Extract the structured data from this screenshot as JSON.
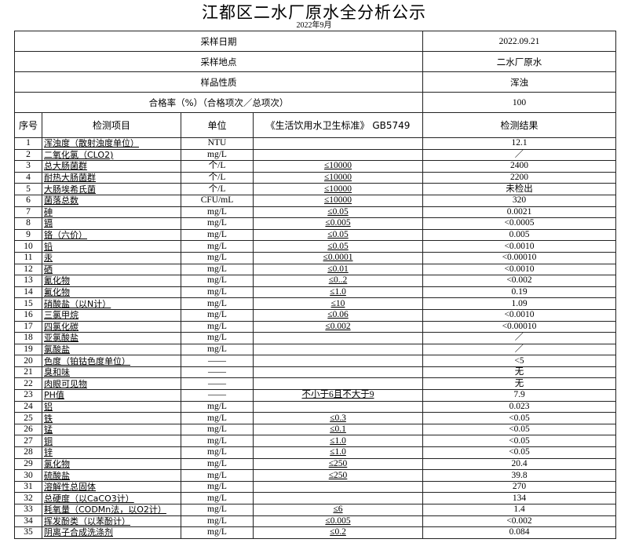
{
  "title": "江都区二水厂原水全分析公示",
  "subtitle": "2022年9月",
  "meta": [
    {
      "label": "采样日期",
      "value": "2022.09.21"
    },
    {
      "label": "采样地点",
      "value": "二水厂原水"
    },
    {
      "label": "样品性质",
      "value": "浑浊"
    },
    {
      "label": "合格率（%）（合格项次／总项次）",
      "value": "100"
    }
  ],
  "columns": [
    "序号",
    "检测项目",
    "单位",
    "《生活饮用水卫生标准》 GB5749",
    "检测结果"
  ],
  "rows": [
    [
      "1",
      "浑浊度（散射浊度单位）",
      "NTU",
      "",
      "12.1"
    ],
    [
      "2",
      "二氧化氯（CLO2)",
      "mg/L",
      "",
      "／"
    ],
    [
      "3",
      "总大肠菌群",
      "个/L",
      "≤10000",
      "2400"
    ],
    [
      "4",
      "耐热大肠菌群",
      "个/L",
      "≤10000",
      "2200"
    ],
    [
      "5",
      "大肠埃希氏菌",
      "个/L",
      "≤10000",
      "未检出"
    ],
    [
      "6",
      "菌落总数",
      "CFU/mL",
      "≤10000",
      "320"
    ],
    [
      "7",
      "砷",
      "mg/L",
      "≤0.05",
      "0.0021"
    ],
    [
      "8",
      "镉",
      "mg/L",
      "≤0.005",
      "<0.0005"
    ],
    [
      "9",
      "铬（六价）",
      "mg/L",
      "≤0.05",
      "0.005"
    ],
    [
      "10",
      "铅",
      "mg/L",
      "≤0.05",
      "<0.0010"
    ],
    [
      "11",
      "汞",
      "mg/L",
      "≤0.0001",
      "<0.00010"
    ],
    [
      "12",
      "硒",
      "mg/L",
      "≤0.01",
      "<0.0010"
    ],
    [
      "13",
      "氰化物",
      "mg/L",
      "≤0..2",
      "<0.002"
    ],
    [
      "14",
      "氟化物",
      "mg/L",
      "≤1.0",
      "0.19"
    ],
    [
      "15",
      "硝酸盐（以N计）",
      "mg/L",
      "≤10",
      "1.09"
    ],
    [
      "16",
      "三氯甲烷",
      "mg/L",
      "≤0.06",
      "<0.0010"
    ],
    [
      "17",
      "四氯化碳",
      "mg/L",
      "≤0.002",
      "<0.00010"
    ],
    [
      "18",
      "亚氯酸盐",
      "mg/L",
      "",
      "／"
    ],
    [
      "19",
      "氯酸盐",
      "mg/L",
      "",
      "／"
    ],
    [
      "20",
      "色度（铂钴色度单位）",
      "——",
      "",
      "<5"
    ],
    [
      "21",
      "臭和味",
      "——",
      "",
      "无"
    ],
    [
      "22",
      "肉眼可见物",
      "——",
      "",
      "无"
    ],
    [
      "23",
      "PH值",
      "——",
      "不小于6且不大于9",
      "7.9"
    ],
    [
      "24",
      "铝",
      "mg/L",
      "",
      "0.023"
    ],
    [
      "25",
      "铁",
      "mg/L",
      "≤0.3",
      "<0.05"
    ],
    [
      "26",
      "锰",
      "mg/L",
      "≤0.1",
      "<0.05"
    ],
    [
      "27",
      "铜",
      "mg/L",
      "≤1.0",
      "<0.05"
    ],
    [
      "28",
      "锌",
      "mg/L",
      "≤1.0",
      "<0.05"
    ],
    [
      "29",
      "氯化物",
      "mg/L",
      "≤250",
      "20.4"
    ],
    [
      "30",
      "硫酸盐",
      "mg/L",
      "≤250",
      "39.8"
    ],
    [
      "31",
      "溶解性总固体",
      "mg/L",
      "",
      "270"
    ],
    [
      "32",
      "总硬度（以CaCO3计）",
      "mg/L",
      "",
      "134"
    ],
    [
      "33",
      "耗氧量（CODMn法，以O2计）",
      "mg/L",
      "≤6",
      "1.4"
    ],
    [
      "34",
      "挥发酚类（以苯酚计）",
      "mg/L",
      "≤0.005",
      "<0.002"
    ],
    [
      "35",
      "阴离子合成洗涤剂",
      "mg/L",
      "≤0.2",
      "0.084"
    ]
  ]
}
